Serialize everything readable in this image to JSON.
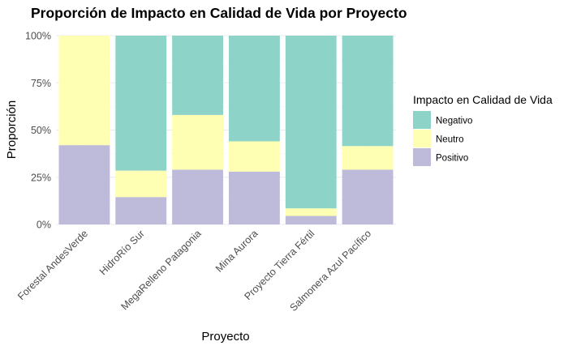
{
  "chart_data": {
    "type": "bar",
    "stacked": true,
    "title": "Proporción de Impacto en Calidad de Vida por Proyecto",
    "xlabel": "Proyecto",
    "ylabel": "Proporción",
    "ylim": [
      0,
      1
    ],
    "y_ticks": [
      "0%",
      "25%",
      "50%",
      "75%",
      "100%"
    ],
    "grid": true,
    "legend_position": "right",
    "legend_title": "Impacto en Calidad de Vida",
    "categories": [
      "Forestal AndesVerde",
      "HidroRío Sur",
      "MegaRelleno Patagonia",
      "Mina Aurora",
      "Proyecto Tierra Fértil",
      "Salmonera Azul Pacífico"
    ],
    "series": [
      {
        "name": "Negativo",
        "color": "#8DD3C7",
        "values": [
          0.0,
          0.715,
          0.42,
          0.56,
          0.915,
          0.585
        ]
      },
      {
        "name": "Neutro",
        "color": "#FFFFB3",
        "values": [
          0.58,
          0.14,
          0.29,
          0.16,
          0.04,
          0.125
        ]
      },
      {
        "name": "Positivo",
        "color": "#BEBADA",
        "values": [
          0.42,
          0.145,
          0.29,
          0.28,
          0.045,
          0.29
        ]
      }
    ]
  }
}
